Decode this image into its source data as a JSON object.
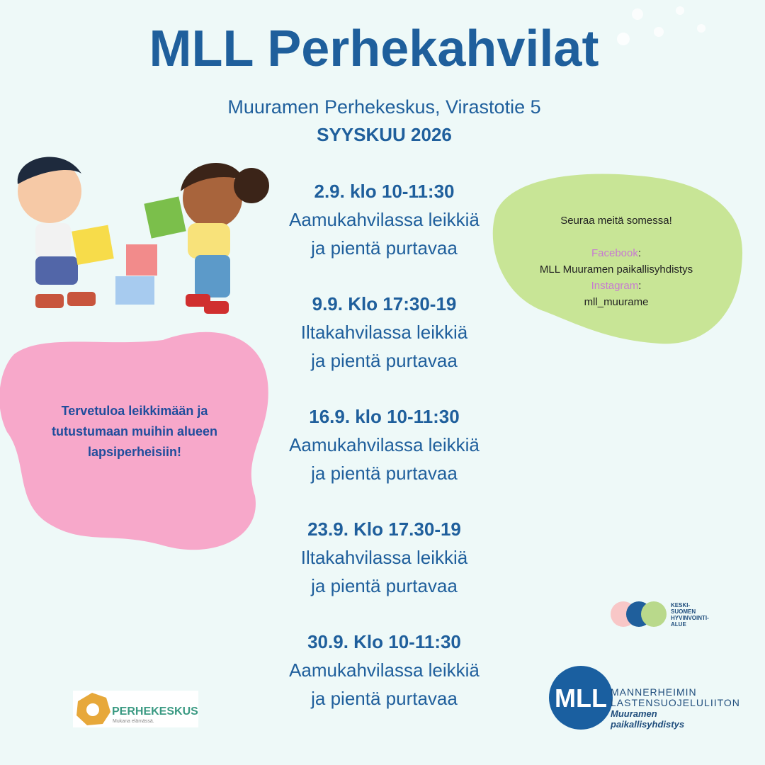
{
  "title": "MLL Perhekahvilat",
  "location": "Muuramen Perhekeskus, Virastotie 5",
  "month": "SYYSKUU 2026",
  "events": [
    {
      "date": "2.9. klo 10-11:30",
      "line1": "Aamukahvilassa leikkiä",
      "line2": "ja pientä purtavaa"
    },
    {
      "date": "9.9. Klo 17:30-19",
      "line1": "Iltakahvilassa leikkiä",
      "line2": "ja pientä purtavaa"
    },
    {
      "date": "16.9. klo 10-11:30",
      "line1": "Aamukahvilassa leikkiä",
      "line2": "ja pientä purtavaa"
    },
    {
      "date": "23.9. Klo 17.30-19",
      "line1": "Iltakahvilassa leikkiä",
      "line2": "ja pientä purtavaa"
    },
    {
      "date": "30.9. Klo 10-11:30",
      "line1": "Aamukahvilassa leikkiä",
      "line2": "ja pientä purtavaa"
    }
  ],
  "social": {
    "heading": "Seuraa meitä somessa!",
    "facebook": {
      "label": "Facebook",
      "separator": ":",
      "name": "MLL Muuramen paikallisyhdistys"
    },
    "instagram": {
      "label": "Instagram",
      "separator": ":",
      "name": "mll_muurame"
    }
  },
  "welcome": [
    "Tervetuloa leikkimään ja",
    "tutustumaan muihin alueen",
    "lapsiperheisiin!"
  ],
  "logos": {
    "perhekeskus": {
      "name": "PERHEKESKUS",
      "tagline": "Mukana elämässä."
    },
    "hyvinvointialue": [
      "KESKI-",
      "SUOMEN",
      "HYVINVOINTI-",
      "ALUE"
    ],
    "mll": {
      "mark": "MLL",
      "line1": "MANNERHEIMIN",
      "line2": "LASTENSUOJELULIITON",
      "line3": "Muuramen",
      "line4": "paikallisyhdistys"
    }
  }
}
